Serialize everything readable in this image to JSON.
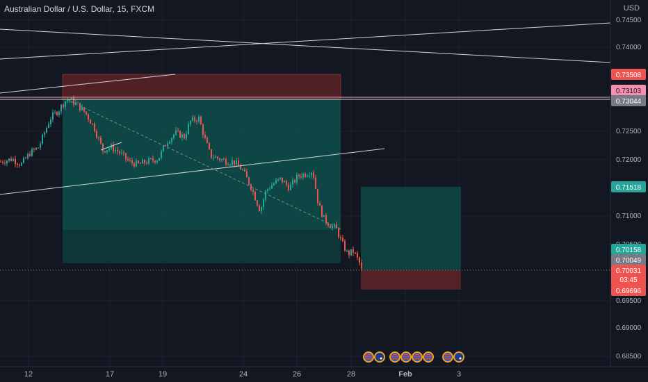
{
  "header": {
    "symbol_title": "Australian Dollar / U.S. Dollar, 15, FXCM",
    "currency": "USD"
  },
  "colors": {
    "background": "#131722",
    "up": "#26a69a",
    "down": "#ef5350",
    "profit_zone": "#0d4f4a",
    "loss_zone": "#5a2328",
    "line": "#d1d4dc"
  },
  "y_axis": {
    "ticks": [
      "0.74500",
      "0.74000",
      "0.72500",
      "0.72000",
      "0.71000",
      "0.70500",
      "0.69500",
      "0.69000",
      "0.68500"
    ]
  },
  "price_tags": {
    "tp_top": "0.73508",
    "pink": "0.73103",
    "gray_top": "0.73044",
    "green_mid": "0.71518",
    "green_low": "0.70158",
    "gray_low": "0.70049",
    "last_price": "0.70031",
    "countdown": "03:45",
    "stop_low": "0.69696"
  },
  "x_axis": {
    "ticks": [
      "12",
      "17",
      "19",
      "24",
      "26",
      "28",
      "Feb",
      "3"
    ]
  },
  "events": {
    "icons": [
      "us-flag-icon",
      "australia-flag-icon",
      "us-flag-icon",
      "us-flag-icon",
      "us-flag-icon",
      "us-flag-icon",
      "us-flag-icon",
      "australia-flag-icon"
    ]
  },
  "chart_data": {
    "type": "candlestick",
    "title": "Australian Dollar / U.S. Dollar, 15, FXCM",
    "ylim": [
      0.684,
      0.7475
    ],
    "x_tick_labels": [
      "12",
      "17",
      "19",
      "24",
      "26",
      "28",
      "Feb",
      "3"
    ],
    "close_path": [
      [
        0,
        0.7195
      ],
      [
        0.02,
        0.72
      ],
      [
        0.035,
        0.719
      ],
      [
        0.05,
        0.721
      ],
      [
        0.065,
        0.722
      ],
      [
        0.075,
        0.7245
      ],
      [
        0.085,
        0.727
      ],
      [
        0.1,
        0.7285
      ],
      [
        0.11,
        0.73
      ],
      [
        0.118,
        0.7303
      ],
      [
        0.13,
        0.7295
      ],
      [
        0.145,
        0.728
      ],
      [
        0.16,
        0.7255
      ],
      [
        0.175,
        0.7215
      ],
      [
        0.19,
        0.722
      ],
      [
        0.205,
        0.721
      ],
      [
        0.22,
        0.7195
      ],
      [
        0.235,
        0.719
      ],
      [
        0.25,
        0.7195
      ],
      [
        0.27,
        0.72
      ],
      [
        0.285,
        0.723
      ],
      [
        0.3,
        0.7245
      ],
      [
        0.315,
        0.7238
      ],
      [
        0.325,
        0.7265
      ],
      [
        0.34,
        0.727
      ],
      [
        0.35,
        0.7235
      ],
      [
        0.36,
        0.7205
      ],
      [
        0.375,
        0.72
      ],
      [
        0.39,
        0.7195
      ],
      [
        0.4,
        0.7195
      ],
      [
        0.415,
        0.718
      ],
      [
        0.43,
        0.715
      ],
      [
        0.445,
        0.711
      ],
      [
        0.455,
        0.7145
      ],
      [
        0.465,
        0.7155
      ],
      [
        0.48,
        0.7165
      ],
      [
        0.495,
        0.715
      ],
      [
        0.51,
        0.717
      ],
      [
        0.525,
        0.7175
      ],
      [
        0.535,
        0.718
      ],
      [
        0.545,
        0.712
      ],
      [
        0.555,
        0.7095
      ],
      [
        0.565,
        0.7085
      ],
      [
        0.575,
        0.708
      ],
      [
        0.585,
        0.7055
      ],
      [
        0.595,
        0.7035
      ],
      [
        0.605,
        0.704
      ],
      [
        0.615,
        0.702
      ],
      [
        0.62,
        0.7003
      ]
    ],
    "annotations": [
      {
        "label": "profit zone (first position)",
        "ylim": [
          0.7015,
          0.7304
        ]
      },
      {
        "label": "stop zone (first position)",
        "ylim": [
          0.7304,
          0.7351
        ]
      },
      {
        "label": "profit zone (second position)",
        "ylim": [
          0.7003,
          0.7152
        ]
      },
      {
        "label": "stop zone (second position)",
        "ylim": [
          0.697,
          0.7003
        ]
      }
    ]
  }
}
